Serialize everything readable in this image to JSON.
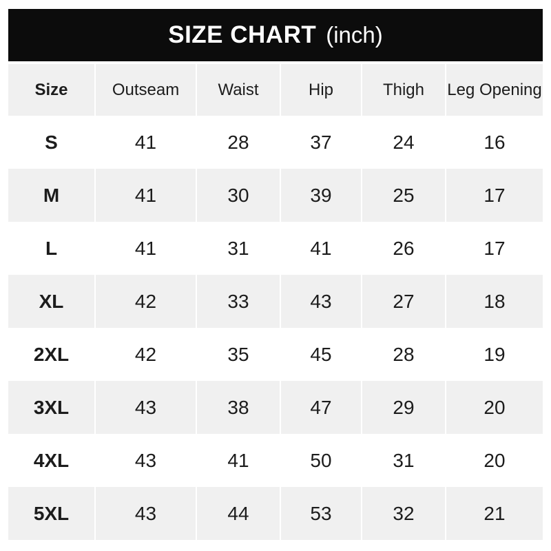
{
  "banner": {
    "title": "SIZE CHART",
    "unit": "(inch)"
  },
  "colors": {
    "banner_bg": "#0c0c0c",
    "banner_text": "#ffffff",
    "shaded_row_bg": "#f0f0f0",
    "row_bg": "#ffffff",
    "text": "#1c1c1c",
    "page_bg": "#ffffff"
  },
  "chart_data": {
    "type": "table",
    "title": "SIZE CHART (inch)",
    "columns": [
      "Size",
      "Outseam",
      "Waist",
      "Hip",
      "Thigh",
      "Leg Opening"
    ],
    "rows": [
      [
        "S",
        41,
        28,
        37,
        24,
        16
      ],
      [
        "M",
        41,
        30,
        39,
        25,
        17
      ],
      [
        "L",
        41,
        31,
        41,
        26,
        17
      ],
      [
        "XL",
        42,
        33,
        43,
        27,
        18
      ],
      [
        "2XL",
        42,
        35,
        45,
        28,
        19
      ],
      [
        "3XL",
        43,
        38,
        47,
        29,
        20
      ],
      [
        "4XL",
        43,
        41,
        50,
        31,
        20
      ],
      [
        "5XL",
        43,
        44,
        53,
        32,
        21
      ]
    ],
    "layout": {
      "header_shaded": true,
      "alternating_rows": "white,gray starting with white",
      "shaded_rows": [
        "header",
        "M",
        "XL",
        "3XL",
        "5XL"
      ]
    }
  }
}
